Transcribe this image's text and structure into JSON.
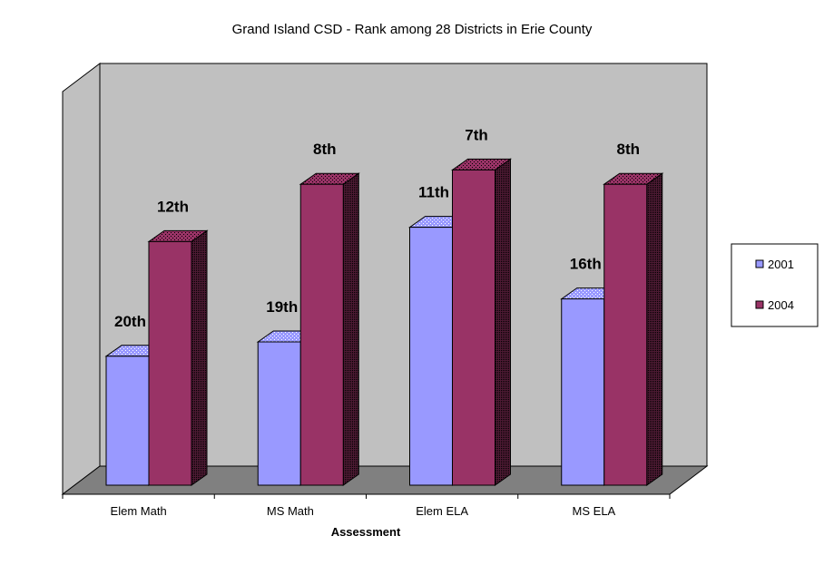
{
  "chart_data": {
    "type": "bar",
    "title": "Grand Island CSD - Rank among 28 Districts in Erie County",
    "xlabel": "Assessment",
    "ylabel": "",
    "categories": [
      "Elem Math",
      "MS Math",
      "Elem ELA",
      "MS ELA"
    ],
    "series": [
      {
        "name": "2001",
        "values": [
          9,
          10,
          18,
          13
        ],
        "labels": [
          "20th",
          "19th",
          "11th",
          "16th"
        ],
        "color": "#9999ff"
      },
      {
        "name": "2004",
        "values": [
          17,
          21,
          22,
          21
        ],
        "labels": [
          "12th",
          "8th",
          "7th",
          "8th"
        ],
        "color": "#993366"
      }
    ],
    "ylim": [
      0,
      28
    ],
    "value_meaning": "29 minus rank among 28 districts",
    "legend_position": "right",
    "grid": false,
    "three_d": true
  }
}
